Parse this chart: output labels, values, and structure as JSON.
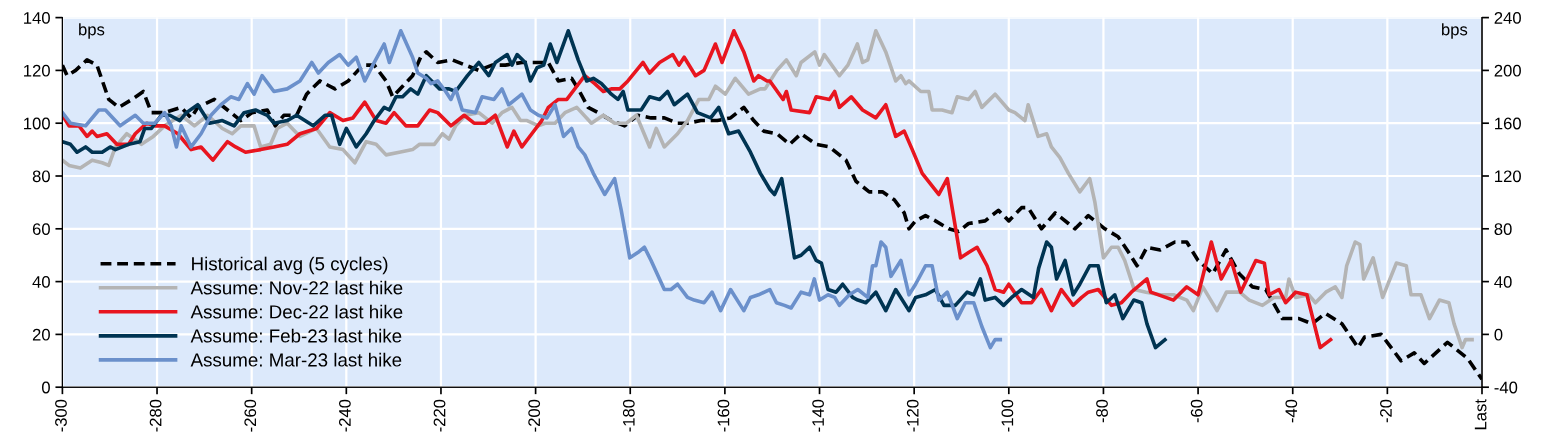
{
  "chart_data": {
    "type": "line",
    "ylabel": "bps",
    "y2label": "bps",
    "xlim": [
      -300,
      0
    ],
    "xticks": [
      -300,
      -280,
      -260,
      -240,
      -220,
      -200,
      -180,
      -160,
      -140,
      -120,
      -100,
      -80,
      -60,
      -40,
      -20,
      {
        "value": 0,
        "label": "Last"
      }
    ],
    "ylim": [
      0,
      140
    ],
    "yticks": [
      0,
      20,
      40,
      60,
      80,
      100,
      120,
      140
    ],
    "y2lim": [
      -40,
      240
    ],
    "y2ticks": [
      -40,
      0,
      40,
      80,
      120,
      160,
      200,
      240
    ],
    "grid": true,
    "legend": "bottom left",
    "marker": "none",
    "series": [
      {
        "name": "Historical avg (5 cycles)",
        "color": "#000000",
        "line_style": "dashed",
        "x": [
          -300,
          -299,
          -297.2,
          -294.8,
          -292.7,
          -290.2,
          -288.1,
          -285.3,
          -282.9,
          -281.2,
          -278.4,
          -274.9,
          -272.8,
          -271.4,
          -267.9,
          -265.1,
          -262.3,
          -259.9,
          -256.7,
          -255,
          -253.2,
          -250.5,
          -248.4,
          -245.6,
          -242.4,
          -239.6,
          -236.5,
          -234.1,
          -231.6,
          -230.2,
          -228.1,
          -226,
          -224.3,
          -223.1,
          -220.7,
          -217.6,
          -214.8,
          -212,
          -209.2,
          -206.4,
          -202.9,
          -199.4,
          -197.3,
          -195.2,
          -192.4,
          -191,
          -188.9,
          -186.8,
          -184,
          -181.2,
          -178.4,
          -175.6,
          -172.8,
          -170,
          -167.9,
          -165.1,
          -161.6,
          -158.8,
          -156,
          -153.9,
          -151.8,
          -149,
          -146.3,
          -143.9,
          -140.7,
          -137.9,
          -134.4,
          -132.3,
          -129.5,
          -126.7,
          -124.2,
          -122.1,
          -121.1,
          -119.7,
          -117.6,
          -115.5,
          -112.7,
          -110.6,
          -108.5,
          -105,
          -102.2,
          -100,
          -97.3,
          -95.9,
          -93.1,
          -90.2,
          -87.4,
          -86,
          -83.2,
          -79.7,
          -76.9,
          -75,
          -72.9,
          -70.8,
          -68,
          -64.9,
          -62.4,
          -60,
          -56.9,
          -54.1,
          -51.3,
          -48.5,
          -45.7,
          -42.2,
          -38.7,
          -35.9,
          -33.1,
          -29.6,
          -26.2,
          -24.8,
          -21.3,
          -17.1,
          -14.3,
          -12.2,
          -7.3,
          -3.1,
          0
        ],
        "values": [
          122,
          118,
          120,
          124,
          122,
          109,
          106,
          109,
          112,
          104,
          104,
          106,
          102,
          106,
          109,
          105,
          101,
          104,
          105,
          99,
          103,
          103,
          111,
          116,
          113,
          116,
          122,
          122,
          116,
          110,
          114,
          118,
          125,
          127,
          123,
          124,
          122,
          120,
          122,
          122,
          123,
          123,
          123,
          116,
          117,
          113,
          106,
          104,
          101,
          99,
          103,
          102,
          102,
          100,
          100,
          101,
          101,
          102,
          106,
          101,
          97,
          96,
          92,
          96,
          92,
          91,
          86,
          78,
          74,
          74,
          71,
          66,
          60,
          63,
          65,
          63,
          60,
          59,
          62,
          63,
          67,
          63,
          68,
          68,
          60,
          66,
          62,
          60,
          65,
          60,
          57,
          52,
          46,
          53,
          52,
          55,
          55,
          48,
          43,
          52,
          43,
          38,
          37,
          26,
          26,
          24,
          28,
          24,
          15,
          19,
          20,
          10,
          13,
          9,
          17,
          11,
          3
        ]
      },
      {
        "name": "Assume: Nov-22 last hike",
        "color": "#b4b4b4",
        "x": [
          -300,
          -298.6,
          -296.2,
          -293.7,
          -291.6,
          -290.2,
          -288.8,
          -286.4,
          -283.3,
          -280.8,
          -278.4,
          -274.9,
          -272.1,
          -269.3,
          -266.2,
          -264.1,
          -262.3,
          -259.5,
          -258.1,
          -256,
          -254.6,
          -252.5,
          -249.8,
          -246.3,
          -243.5,
          -240.7,
          -238.2,
          -235.8,
          -233.7,
          -231.6,
          -228.8,
          -226,
          -224.5,
          -221.4,
          -219.7,
          -218.3,
          -216.9,
          -214.8,
          -212,
          -209.2,
          -207.1,
          -205,
          -203.2,
          -201.8,
          -199.4,
          -198,
          -195.9,
          -193.8,
          -191.3,
          -188.2,
          -185.7,
          -183.3,
          -180.8,
          -178.7,
          -175.9,
          -174.5,
          -172.8,
          -170,
          -167.9,
          -165.5,
          -163.4,
          -162,
          -159.9,
          -157.8,
          -155,
          -152.5,
          -151.5,
          -149,
          -147,
          -144.9,
          -143.9,
          -141,
          -140,
          -139,
          -135.8,
          -134,
          -132,
          -130.9,
          -129.8,
          -128.1,
          -126,
          -123.9,
          -122.8,
          -121.8,
          -121.1,
          -118.6,
          -116.9,
          -116.2,
          -114.1,
          -112,
          -110.9,
          -108.5,
          -107.1,
          -105.7,
          -102.9,
          -100,
          -98.7,
          -96.6,
          -95.9,
          -93.8,
          -92,
          -91,
          -89.2,
          -87.4,
          -85,
          -82.9,
          -81.8,
          -80,
          -78.3,
          -76.9,
          -75.5,
          -73.5,
          -71,
          -68,
          -65.2,
          -62.4,
          -61,
          -59,
          -56,
          -54,
          -51.2,
          -49.2,
          -46.4,
          -44,
          -41.5,
          -40.8,
          -39.4,
          -36.6,
          -35.2,
          -33,
          -31,
          -29.6,
          -28.6,
          -26.8,
          -25.8,
          -25,
          -23,
          -21,
          -18.1,
          -16,
          -15,
          -12.9,
          -11.1,
          -9,
          -7,
          -5.9,
          -4.2,
          -3.5,
          -2.1
        ],
        "values": [
          86,
          84,
          83,
          86,
          85,
          84,
          91,
          96,
          92,
          95,
          99,
          103,
          99,
          103,
          98,
          96,
          99,
          99,
          91,
          92,
          98,
          100,
          95,
          98,
          91,
          90,
          85,
          93,
          92,
          88,
          89,
          90,
          92,
          92,
          96,
          94,
          99,
          103,
          104,
          100,
          104,
          106,
          101,
          101,
          99,
          100,
          100,
          104,
          106,
          100,
          103,
          100,
          100,
          103,
          91,
          98,
          91,
          96,
          101,
          109,
          109,
          114,
          111,
          117,
          111,
          113,
          113,
          120,
          124,
          118,
          123,
          127,
          122,
          126,
          118,
          122,
          130,
          123,
          124,
          135,
          127,
          116,
          118,
          115,
          116,
          112,
          112,
          105,
          105,
          104,
          110,
          109,
          112,
          106,
          111,
          105,
          104,
          101,
          107,
          95,
          96,
          91,
          87,
          81,
          74,
          79,
          70,
          49,
          53,
          53,
          48,
          37,
          36,
          35,
          35,
          33,
          29,
          38,
          29,
          36,
          36,
          33,
          31,
          34,
          34,
          41,
          34,
          35,
          32,
          36,
          38,
          34,
          46,
          55,
          54,
          41,
          49,
          34,
          47,
          46,
          35,
          35,
          26,
          33,
          32,
          24,
          15,
          18,
          18
        ]
      },
      {
        "name": "Assume: Dec-22 last hike",
        "color": "#e8151f",
        "x": [
          -300,
          -298.6,
          -296.5,
          -294.8,
          -293.7,
          -292.7,
          -290.6,
          -288.5,
          -286,
          -284.6,
          -282.2,
          -280.5,
          -278.4,
          -275.6,
          -272.8,
          -270.7,
          -268.2,
          -266.9,
          -265.1,
          -263.4,
          -261.3,
          -258.1,
          -255.3,
          -252.5,
          -249.8,
          -246.3,
          -243.5,
          -240.7,
          -238.6,
          -236.1,
          -233.7,
          -231.6,
          -229.9,
          -227.4,
          -224.9,
          -222.4,
          -220.7,
          -217.9,
          -215.1,
          -213,
          -210.6,
          -208.5,
          -206,
          -204.6,
          -202.9,
          -200.8,
          -198.7,
          -197.3,
          -195.2,
          -193.4,
          -191.3,
          -189.6,
          -187.5,
          -185.7,
          -184,
          -182.2,
          -180.5,
          -177.3,
          -175.9,
          -173.8,
          -171,
          -169.7,
          -168.6,
          -166.2,
          -164.4,
          -162,
          -160.6,
          -158.1,
          -156,
          -153.9,
          -152.9,
          -151.1,
          -150.5,
          -147.7,
          -147,
          -146,
          -142.1,
          -140.7,
          -137.9,
          -136.8,
          -135.8,
          -133.3,
          -130.9,
          -128.1,
          -126,
          -123.9,
          -122.1,
          -120.4,
          -118.3,
          -114.8,
          -113,
          -110.2,
          -108.5,
          -106.7,
          -104.6,
          -102.9,
          -101.1,
          -100,
          -97.3,
          -95.2,
          -93.1,
          -91,
          -88.9,
          -86.4,
          -84.6,
          -83.2,
          -81.1,
          -78.3,
          -76.2,
          -74.1,
          -70.8,
          -70,
          -65.2,
          -62.4,
          -60,
          -59,
          -57.2,
          -55.1,
          -53,
          -51,
          -47.8,
          -46,
          -45,
          -42.9,
          -41.5,
          -39.4,
          -37,
          -34.2,
          -32
        ],
        "values": [
          103,
          99,
          99,
          95,
          97,
          95,
          96,
          92,
          92,
          96,
          100,
          99,
          99,
          96,
          90,
          91,
          86,
          89,
          93,
          91,
          89,
          90,
          91,
          92,
          96,
          98,
          104,
          101,
          102,
          108,
          101,
          100,
          104,
          99,
          99,
          105,
          104,
          99,
          103,
          100,
          100,
          103,
          91,
          97,
          91,
          96,
          101,
          106,
          109,
          109,
          114,
          118,
          115,
          112,
          113,
          113,
          116,
          123,
          119,
          123,
          126,
          122,
          125,
          118,
          120,
          130,
          123,
          135,
          127,
          116,
          118,
          116,
          116,
          109,
          112,
          105,
          104,
          110,
          109,
          112,
          106,
          110,
          105,
          102,
          107,
          95,
          97,
          90,
          81,
          73,
          79,
          49,
          51,
          53,
          46,
          37,
          36,
          39,
          32,
          32,
          37,
          29,
          37,
          31,
          34,
          36,
          37,
          31,
          32,
          36,
          41,
          36,
          33,
          38,
          35,
          42,
          55,
          41,
          48,
          36,
          48,
          47,
          35,
          37,
          32,
          36,
          35,
          15,
          18
        ]
      },
      {
        "name": "Assume: Feb-23 last hike",
        "color": "#003452",
        "x": [
          -300,
          -298.3,
          -296.9,
          -295.1,
          -293.7,
          -291.6,
          -289.9,
          -288.8,
          -286,
          -283.6,
          -282.6,
          -281.2,
          -279.1,
          -277.3,
          -275.2,
          -273.8,
          -271.4,
          -268.9,
          -266.2,
          -263.7,
          -261.6,
          -259.2,
          -256.7,
          -255.3,
          -252.5,
          -250.5,
          -247,
          -244.5,
          -243.1,
          -241.4,
          -240,
          -237.9,
          -235.8,
          -234.1,
          -232,
          -230.9,
          -229.5,
          -228.1,
          -226.4,
          -224.9,
          -223.1,
          -220.3,
          -218.3,
          -216.9,
          -214.4,
          -212,
          -209.9,
          -208.5,
          -206,
          -205,
          -203.9,
          -202.2,
          -201.1,
          -199.7,
          -198.3,
          -196.9,
          -195.5,
          -193.1,
          -191,
          -189.2,
          -187.8,
          -186.1,
          -184,
          -182.6,
          -181.5,
          -180.5,
          -177.7,
          -175.9,
          -173.8,
          -172.1,
          -170.7,
          -167.9,
          -165.8,
          -163,
          -161.3,
          -159.2,
          -157.1,
          -154.6,
          -152.5,
          -150.5,
          -149.5,
          -148,
          -146.7,
          -145.3,
          -143.9,
          -142.1,
          -140.7,
          -139.6,
          -138.2,
          -136.5,
          -135.1,
          -133,
          -131.9,
          -130.2,
          -128.1,
          -126,
          -123.9,
          -121.1,
          -119.7,
          -117.6,
          -115.5,
          -113.7,
          -111.3,
          -108.8,
          -107.4,
          -106,
          -105,
          -102.9,
          -101.1,
          -99.4,
          -97.3,
          -94.8,
          -93.7,
          -92,
          -91,
          -89.9,
          -88.1,
          -86.4,
          -85,
          -82.9,
          -81.1,
          -79.4,
          -77.6,
          -75.9,
          -73.6,
          -71.9,
          -70.8,
          -69,
          -67
        ],
        "values": [
          93,
          92,
          89,
          91,
          89,
          89,
          91,
          90,
          92,
          93,
          98,
          98,
          103,
          103,
          101,
          104,
          107,
          100,
          101,
          99,
          104,
          105,
          103,
          100,
          101,
          103,
          99,
          103,
          103,
          92,
          98,
          91,
          96,
          101,
          106,
          105,
          110,
          110,
          113,
          111,
          118,
          113,
          113,
          112,
          118,
          123,
          118,
          123,
          126,
          122,
          126,
          123,
          116,
          121,
          122,
          130,
          123,
          135,
          124,
          116,
          117,
          115,
          111,
          109,
          112,
          105,
          105,
          110,
          109,
          112,
          107,
          111,
          104,
          102,
          106,
          96,
          97,
          89,
          81,
          75,
          73,
          79,
          65,
          49,
          50,
          53,
          48,
          47,
          37,
          36,
          39,
          34,
          33,
          32,
          36,
          29,
          37,
          29,
          34,
          35,
          37,
          31,
          31,
          36,
          35,
          41,
          33,
          34,
          31,
          34,
          37,
          34,
          45,
          55,
          53,
          41,
          48,
          35,
          39,
          46,
          46,
          32,
          35,
          26,
          33,
          32,
          24,
          15,
          18
        ]
      },
      {
        "name": "Assume: Mar-23 last hike",
        "color": "#6b90cb",
        "x": [
          -300,
          -298.3,
          -295.1,
          -292.3,
          -290.9,
          -287.8,
          -284.6,
          -282.9,
          -280.5,
          -278.4,
          -277,
          -275.9,
          -274.9,
          -272.8,
          -270.7,
          -268.6,
          -266.5,
          -264.4,
          -262.7,
          -260.9,
          -259.5,
          -257.8,
          -255.3,
          -252.5,
          -249.8,
          -247.3,
          -245.9,
          -243.8,
          -241.4,
          -239.6,
          -237.9,
          -236.1,
          -234.4,
          -232,
          -230.9,
          -228.5,
          -226,
          -224.9,
          -223.1,
          -222.1,
          -220.7,
          -219,
          -217.9,
          -216.9,
          -215.5,
          -212.7,
          -211.3,
          -208.8,
          -207.1,
          -205.7,
          -203.6,
          -202.9,
          -201.1,
          -199.4,
          -197.6,
          -195.9,
          -194.1,
          -192.4,
          -191,
          -189.6,
          -187.8,
          -185.4,
          -183.3,
          -181.9,
          -180.1,
          -178.4,
          -177,
          -175.6,
          -172.8,
          -171.4,
          -170,
          -167.9,
          -166.5,
          -164.4,
          -162.7,
          -160.9,
          -158.8,
          -156,
          -154.6,
          -152.9,
          -150.5,
          -149.1,
          -147.4,
          -146,
          -143.9,
          -142.1,
          -141.1,
          -140,
          -138.2,
          -136.8,
          -135.8,
          -133.7,
          -131.9,
          -129.8,
          -128.8,
          -128.1,
          -127,
          -126,
          -124.9,
          -122.8,
          -121.1,
          -119.7,
          -117.6,
          -116.2,
          -114.8,
          -113,
          -110.9,
          -109.2,
          -107.4,
          -105.7,
          -103.9,
          -102.9,
          -101.8
        ],
        "values": [
          104,
          100,
          99,
          105,
          105,
          99,
          103,
          100,
          100,
          104,
          99,
          91,
          99,
          91,
          96,
          103,
          107,
          110,
          109,
          115,
          111,
          118,
          112,
          113,
          116,
          123,
          119,
          123,
          126,
          122,
          125,
          116,
          122,
          130,
          123,
          135,
          125,
          119,
          117,
          115,
          116,
          112,
          109,
          113,
          105,
          104,
          110,
          109,
          113,
          107,
          110,
          111,
          105,
          103,
          102,
          107,
          95,
          98,
          91,
          88,
          81,
          73,
          79,
          67,
          49,
          51,
          53,
          48,
          37,
          37,
          39,
          34,
          33,
          32,
          36,
          29,
          37,
          29,
          34,
          35,
          37,
          32,
          31,
          30,
          36,
          35,
          41,
          33,
          35,
          34,
          31,
          35,
          37,
          34,
          46,
          46,
          55,
          53,
          42,
          48,
          35,
          39,
          46,
          46,
          33,
          36,
          26,
          32,
          32,
          23,
          15,
          18,
          18
        ]
      }
    ]
  }
}
